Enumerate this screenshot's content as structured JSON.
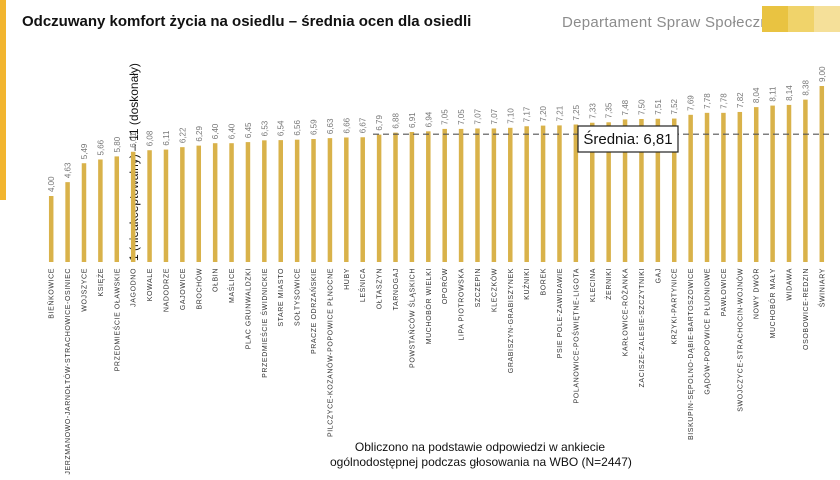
{
  "header": {
    "title": "Odczuwany komfort życia na osiedlu – średnia ocen dla osiedli",
    "department": "Departament Spraw Społecznych"
  },
  "colors": {
    "bar": "#d9b24a",
    "accent": "#f2b52f",
    "logo": [
      "#e9c341",
      "#f0d36a",
      "#f5e099"
    ],
    "mean_line": "#555555"
  },
  "footnote": {
    "line1": "Obliczono na podstawie odpowiedzi w ankiecie",
    "line2": "ogólnodostępnej podczas głosowania na WBO (N=2447)"
  },
  "chart_data": {
    "type": "bar",
    "ylabel": "1 (nieakceptowalny) – 11 (doskonały)",
    "ylim": [
      1,
      11
    ],
    "categories": [
      "BIEŃKOWICE",
      "JERZMANOWO-JARNOŁTÓW-STRACHOWICE-OSINIEC",
      "WOJSZYCE",
      "KSIĘŻE",
      "PRZEDMIEŚCIE OŁAWSKIE",
      "JAGODNO",
      "KOWALE",
      "NADODRZE",
      "GAJOWICE",
      "BROCHÓW",
      "OŁBIN",
      "MAŚLICE",
      "PLAC GRUNWALDZKI",
      "PRZEDMIEŚCIE ŚWIDNICKIE",
      "STARE MIASTO",
      "SOŁTYSOWICE",
      "PRACZE ODRZAŃSKIE",
      "PILCZYCE-KOZANÓW-POPOWICE PŁNOCNE",
      "HUBY",
      "LEŚNICA",
      "OŁTASZYN",
      "TARNOGAJ",
      "POWSTAŃCÓW ŚLĄSKICH",
      "MUCHOBÓR WIELKI",
      "OPORÓW",
      "LIPA PIOTROWSKA",
      "SZCZEPIN",
      "KLECZKÓW",
      "GRABISZYN-GRABISZYNEK",
      "KUŹNIKI",
      "BOREK",
      "PSIE POLE-ZAWIDAWIE",
      "POLANOWICE-POŚWIĘTNE-LIGOTA",
      "KLECINA",
      "ŻERNIKI",
      "KARŁOWICE-RÓŻANKA",
      "ZACISZE-ZALESIE-SZCZYTNIKI",
      "GAJ",
      "KRZYKI-PARTYNICE",
      "BISKUPIN-SĘPOLNO-DĄBIE-BARTOSZOWICE",
      "GĄDÓW-POPOWICE PŁUDNIOWE",
      "PAWŁOWICE",
      "SWOJCZYCE-STRACHOCIN-WOJNÓW",
      "NOWY DWÓR",
      "MUCHOBÓR MAŁY",
      "WIDAWA",
      "OSOBOWICE-REDZIN",
      "ŚWINIARY"
    ],
    "values": [
      4.0,
      4.63,
      5.49,
      5.66,
      5.8,
      6.01,
      6.08,
      6.11,
      6.22,
      6.29,
      6.4,
      6.4,
      6.45,
      6.53,
      6.54,
      6.56,
      6.59,
      6.63,
      6.66,
      6.67,
      6.79,
      6.88,
      6.91,
      6.94,
      7.05,
      7.05,
      7.07,
      7.07,
      7.1,
      7.17,
      7.2,
      7.21,
      7.25,
      7.33,
      7.35,
      7.48,
      7.5,
      7.51,
      7.52,
      7.69,
      7.78,
      7.78,
      7.82,
      8.04,
      8.11,
      8.14,
      8.38,
      9.0
    ],
    "value_labels": [
      "4,00",
      "4,63",
      "5,49",
      "5,66",
      "5,80",
      "6,01",
      "6,08",
      "6,11",
      "6,22",
      "6,29",
      "6,40",
      "6,40",
      "6,45",
      "6,53",
      "6,54",
      "6,56",
      "6,59",
      "6,63",
      "6,66",
      "6,67",
      "6,79",
      "6,88",
      "6,91",
      "6,94",
      "7,05",
      "7,05",
      "7,07",
      "7,07",
      "7,10",
      "7,17",
      "7,20",
      "7,21",
      "7,25",
      "7,33",
      "7,35",
      "7,48",
      "7,50",
      "7,51",
      "7,52",
      "7,69",
      "7,78",
      "7,78",
      "7,82",
      "8,04",
      "8,11",
      "8,14",
      "8,38",
      "9,00"
    ],
    "mean": 6.81,
    "mean_label": "Średnia: 6,81",
    "grid": false,
    "legend": "none"
  }
}
